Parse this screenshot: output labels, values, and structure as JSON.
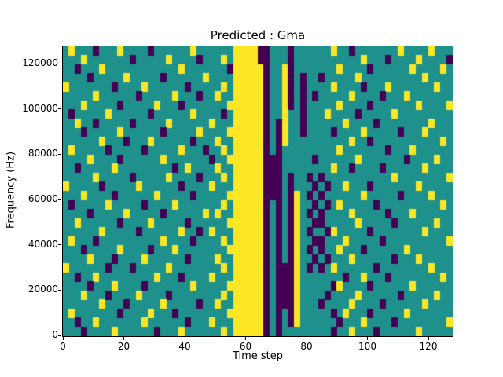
{
  "chart_data": {
    "type": "heatmap",
    "title": "Predicted : Gma",
    "xlabel": "Time step",
    "ylabel": "Frequency (Hz)",
    "xlim": [
      0,
      128
    ],
    "ylim": [
      0,
      128000
    ],
    "xticks": [
      0,
      20,
      40,
      60,
      80,
      100,
      120
    ],
    "yticks": [
      0,
      20000,
      40000,
      60000,
      80000,
      100000,
      120000
    ],
    "legend": "none",
    "grid_lines": "off",
    "background": "#ffffff",
    "colormap": {
      "name": "viridis-3-level",
      "low": "#440154",
      "mid": "#1f918d",
      "high": "#fde725"
    },
    "grid_encoding": {
      "cols": 64,
      "rows": 32,
      "row_order": "top-to-bottom-high-freq-first",
      "time_steps_per_col": 2,
      "hz_per_row": 4000,
      "symbols": {
        ".": "mid (teal)",
        "Y": "high (yellow)",
        "P": "low (dark purple)"
      },
      "notes": "solid yellow vertical band near time 56-65; dark vertical lines near 66-76; yellow lower column near 76-78; dark cluster near 80-88 at low-mid frequencies; sparse scattered marks elsewhere"
    },
    "grid": [
      ".Y...P...Y....P......Y......YYYYPP...P......Y..P.......Y....Y...",
      "...Y.......P.....Y....P...Y.YYYYPP...P...........Y...P....Y....P",
      "..P...Y............Y.......PYYYYYP..YP.......Y....P......Y....Y.",
      "....P.....Y.....P......Y....YYYYYP..YP.P..P.....Y..........Y....",
      "Y.......P....Y......P.....Y.YYYYYP..YP.P....Y....P...Y.......Y..",
      ".....Y......P.....Y...P..Y..YYYYYP..YP.P.P.....Y....P...Y.......",
      "...Y.....P.....Y...P.......YYYYYYP..YP.P.....Y....P.......Y....Y",
      ".P.....Y......P......Y....P.YYYYYP..Y..P...Y....P.....Y.........",
      "..Y..P.....P.....Y......Y...YYYYYP.PY..P......Y....P........Y...",
      "...P.....Y......P.....Y....YYYYYYP.PY..P....P....Y.....P...Y....",
      "......Y...P...Y......P...Y..YYYYYP.PY..........Y..P...........Y.",
      ".Y.....P.....P.....Y...P..Y.YYYYYP.P.........Y.......P...Y......",
      "....Y....P......Y.......P..YYYYYYPPP.....P......Y.......P....Y..",
      "..P.....Y.........P.Y....Y..YYYYYPPP........Y..P....P......Y....",
      ".....Y.....P.....Y....P...Y.YYYYYPPP.P..P.P...........Y........Y",
      "Y.....P.....Y......P....Y...YYYYYPPP.P...P.P..Y...P.......Y.....",
      "...Y....P......Y.....P.....YYYYYYPPP.PY.P.P......Y.....P....Y...",
      ".P.....Y.....P....Y.......Y.YYYYYP.P.PY..P.P.Y.....P..........Y.",
      "....P.....Y.....P......Y.Y..YYYYYP.P.PY.P.P....Y.....P...Y......",
      "..Y......P....Y.....P......YYYYYYP.P.PY..PP.....Y.....P......Y..",
      "......Y.....P......Y..P.Y...YYYYYP.P.PY.P..PY.....P........Y....",
      ".Y...P..........Y....P....Y.YYYYYP.P.PY..PP...Y.....P..........Y",
      "...P.....Y....P...Y........YYYYYYP.P.PY.P.P..Y...P......Y.......",
      "....Y...P....Y......P....Y..YYYYYP.P.PY..P.P...Y......P...Y.....",
      "Y......P...P.....Y........Y.YYYYYP.PPPY.P.P.Y......P........Y...",
      "..P..Y.........Y...P....Y...YYYYYP.PPPY.......P..Y...P........Y.",
      "....P...Y....P.......Y.....YYYYYYP.PPPY.....PY....P......Y......",
      "...Y...P....Y....P........Y.YYYYYP.PPPY....P....Y......P.....Y..",
      "......Y...P.....Y.....P..Y..YYYYYP.PPPY...P....Y....P......Y....",
      ".Y.......P....Y...P........YYYYYYP.P.PY.....P.Y...P.....Y.......",
      "..P..Y.......Y......P...Y...YYYYYP.P.PY......P...Y....P........Y",
      "...P....Y......P...Y......Y.YYYYYP.P........P..Y...P......Y....."
    ]
  }
}
